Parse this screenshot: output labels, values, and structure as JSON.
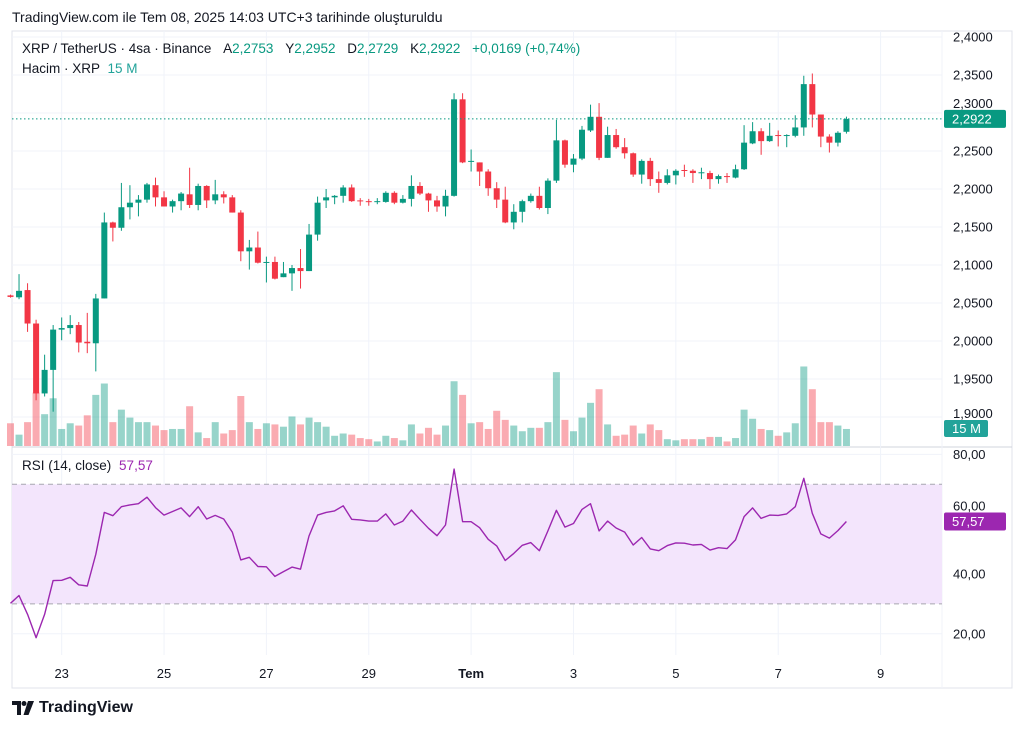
{
  "caption": "TradingView.com ile Tem 08, 2025 14:03 UTC+3 tarihinde oluşturuldu",
  "legend": {
    "symbol": "XRP / TetherUS · 4sa · Binance",
    "open_label": "A",
    "open": "2,2753",
    "high_label": "Y",
    "high": "2,2952",
    "low_label": "D",
    "low": "2,2729",
    "close_label": "K",
    "close": "2,2922",
    "change": "+0,0169 (+0,74%)",
    "volume_label": "Hacim · XRP",
    "volume": "15 M",
    "rsi_label": "RSI (14, close)",
    "rsi": "57,57"
  },
  "footer": {
    "brand": "TradingView"
  },
  "colors": {
    "up": "#089981",
    "down": "#f23645",
    "rsi": "#9c27b0",
    "rsi_band": "#f3e5fc",
    "volume_label": "#22a39a"
  },
  "chart_data": {
    "type": "candlestick",
    "title": "XRP / TetherUS · 4sa · Binance",
    "ylim": [
      1.87,
      2.4
    ],
    "y_ticks": [
      {
        "value": 2.4,
        "label": "2,4000"
      },
      {
        "value": 2.35,
        "label": "2,3500"
      },
      {
        "value": 2.3,
        "label": "2,3000"
      },
      {
        "value": 2.25,
        "label": "2,2500"
      },
      {
        "value": 2.2,
        "label": "2,2000"
      },
      {
        "value": 2.15,
        "label": "2,1500"
      },
      {
        "value": 2.1,
        "label": "2,1000"
      },
      {
        "value": 2.05,
        "label": "2,0500"
      },
      {
        "value": 2.0,
        "label": "2,0000"
      },
      {
        "value": 1.95,
        "label": "1,9500"
      },
      {
        "value": 1.9,
        "label": "1,9000"
      }
    ],
    "x_ticks": [
      {
        "candle": 6,
        "label": "23"
      },
      {
        "candle": 18,
        "label": "25"
      },
      {
        "candle": 30,
        "label": "27"
      },
      {
        "candle": 42,
        "label": "29"
      },
      {
        "candle": 54,
        "label": "Tem",
        "bold": true
      },
      {
        "candle": 66,
        "label": "3"
      },
      {
        "candle": 78,
        "label": "5"
      },
      {
        "candle": 90,
        "label": "7"
      },
      {
        "candle": 102,
        "label": "9"
      }
    ],
    "last_price": {
      "value": 2.2922,
      "label": "2,2922"
    },
    "grid": true,
    "ohlc": [
      [
        2.06,
        2.061,
        2.057,
        2.058
      ],
      [
        2.0575,
        2.088,
        2.055,
        2.066
      ],
      [
        2.067,
        2.076,
        2.012,
        2.023
      ],
      [
        2.023,
        2.028,
        1.922,
        1.931
      ],
      [
        1.931,
        1.982,
        1.927,
        1.962
      ],
      [
        1.962,
        2.021,
        1.907,
        2.015
      ],
      [
        2.015,
        2.031,
        2.001,
        2.017
      ],
      [
        2.017,
        2.034,
        2.009,
        2.021
      ],
      [
        2.021,
        2.025,
        1.985,
        1.998
      ],
      [
        1.999,
        2.037,
        1.984,
        1.997
      ],
      [
        1.997,
        2.062,
        1.96,
        2.056
      ],
      [
        2.056,
        2.169,
        2.056,
        2.156
      ],
      [
        2.156,
        2.157,
        2.131,
        2.149
      ],
      [
        2.149,
        2.208,
        2.145,
        2.176
      ],
      [
        2.176,
        2.205,
        2.16,
        2.182
      ],
      [
        2.182,
        2.192,
        2.164,
        2.186
      ],
      [
        2.186,
        2.208,
        2.182,
        2.206
      ],
      [
        2.205,
        2.215,
        2.177,
        2.189
      ],
      [
        2.189,
        2.197,
        2.177,
        2.177
      ],
      [
        2.177,
        2.186,
        2.169,
        2.184
      ],
      [
        2.184,
        2.196,
        2.172,
        2.194
      ],
      [
        2.193,
        2.228,
        2.175,
        2.179
      ],
      [
        2.179,
        2.207,
        2.172,
        2.204
      ],
      [
        2.204,
        2.205,
        2.175,
        2.185
      ],
      [
        2.185,
        2.212,
        2.18,
        2.193
      ],
      [
        2.193,
        2.197,
        2.181,
        2.189
      ],
      [
        2.189,
        2.192,
        2.169,
        2.169
      ],
      [
        2.169,
        2.172,
        2.105,
        2.118
      ],
      [
        2.118,
        2.133,
        2.094,
        2.123
      ],
      [
        2.123,
        2.144,
        2.102,
        2.103
      ],
      [
        2.103,
        2.111,
        2.077,
        2.104
      ],
      [
        2.104,
        2.111,
        2.081,
        2.082
      ],
      [
        2.084,
        2.104,
        2.084,
        2.089
      ],
      [
        2.089,
        2.1,
        2.066,
        2.096
      ],
      [
        2.096,
        2.121,
        2.069,
        2.092
      ],
      [
        2.092,
        2.154,
        2.092,
        2.14
      ],
      [
        2.14,
        2.19,
        2.132,
        2.182
      ],
      [
        2.185,
        2.2,
        2.175,
        2.189
      ],
      [
        2.189,
        2.192,
        2.18,
        2.191
      ],
      [
        2.191,
        2.205,
        2.182,
        2.202
      ],
      [
        2.202,
        2.206,
        2.183,
        2.184
      ],
      [
        2.185,
        2.188,
        2.178,
        2.184
      ],
      [
        2.184,
        2.187,
        2.178,
        2.183
      ],
      [
        2.183,
        2.188,
        2.18,
        2.184
      ],
      [
        2.183,
        2.197,
        2.182,
        2.195
      ],
      [
        2.195,
        2.197,
        2.18,
        2.182
      ],
      [
        2.182,
        2.192,
        2.181,
        2.187
      ],
      [
        2.187,
        2.218,
        2.177,
        2.204
      ],
      [
        2.204,
        2.209,
        2.192,
        2.194
      ],
      [
        2.194,
        2.195,
        2.17,
        2.185
      ],
      [
        2.185,
        2.191,
        2.17,
        2.177
      ],
      [
        2.177,
        2.199,
        2.164,
        2.191
      ],
      [
        2.191,
        2.326,
        2.19,
        2.318
      ],
      [
        2.318,
        2.326,
        2.234,
        2.235
      ],
      [
        2.236,
        2.252,
        2.223,
        2.237
      ],
      [
        2.235,
        2.235,
        2.204,
        2.223
      ],
      [
        2.223,
        2.226,
        2.191,
        2.201
      ],
      [
        2.201,
        2.209,
        2.175,
        2.186
      ],
      [
        2.186,
        2.203,
        2.155,
        2.156
      ],
      [
        2.156,
        2.18,
        2.147,
        2.17
      ],
      [
        2.17,
        2.186,
        2.156,
        2.184
      ],
      [
        2.184,
        2.194,
        2.182,
        2.191
      ],
      [
        2.191,
        2.203,
        2.173,
        2.175
      ],
      [
        2.175,
        2.214,
        2.167,
        2.211
      ],
      [
        2.211,
        2.291,
        2.208,
        2.264
      ],
      [
        2.264,
        2.265,
        2.228,
        2.232
      ],
      [
        2.232,
        2.246,
        2.222,
        2.24
      ],
      [
        2.24,
        2.283,
        2.238,
        2.278
      ],
      [
        2.277,
        2.311,
        2.275,
        2.295
      ],
      [
        2.295,
        2.313,
        2.238,
        2.241
      ],
      [
        2.241,
        2.282,
        2.241,
        2.271
      ],
      [
        2.271,
        2.279,
        2.253,
        2.255
      ],
      [
        2.255,
        2.267,
        2.24,
        2.247
      ],
      [
        2.247,
        2.248,
        2.216,
        2.219
      ],
      [
        2.219,
        2.239,
        2.207,
        2.237
      ],
      [
        2.237,
        2.241,
        2.204,
        2.213
      ],
      [
        2.213,
        2.223,
        2.195,
        2.208
      ],
      [
        2.208,
        2.226,
        2.206,
        2.218
      ],
      [
        2.218,
        2.226,
        2.206,
        2.224
      ],
      [
        2.225,
        2.232,
        2.216,
        2.224
      ],
      [
        2.224,
        2.226,
        2.208,
        2.221
      ],
      [
        2.221,
        2.228,
        2.213,
        2.222
      ],
      [
        2.221,
        2.224,
        2.2,
        2.213
      ],
      [
        2.213,
        2.219,
        2.207,
        2.217
      ],
      [
        2.217,
        2.221,
        2.208,
        2.216
      ],
      [
        2.215,
        2.232,
        2.214,
        2.226
      ],
      [
        2.226,
        2.284,
        2.225,
        2.261
      ],
      [
        2.26,
        2.288,
        2.259,
        2.276
      ],
      [
        2.276,
        2.28,
        2.245,
        2.263
      ],
      [
        2.263,
        2.287,
        2.262,
        2.27
      ],
      [
        2.271,
        2.277,
        2.256,
        2.27
      ],
      [
        2.27,
        2.272,
        2.255,
        2.271
      ],
      [
        2.27,
        2.297,
        2.268,
        2.281
      ],
      [
        2.281,
        2.349,
        2.27,
        2.338
      ],
      [
        2.338,
        2.352,
        2.281,
        2.298
      ],
      [
        2.298,
        2.298,
        2.255,
        2.269
      ],
      [
        2.269,
        2.272,
        2.248,
        2.261
      ],
      [
        2.261,
        2.276,
        2.256,
        2.274
      ],
      [
        2.2753,
        2.2952,
        2.2729,
        2.2922
      ]
    ],
    "volume_millions": [
      20,
      10,
      21,
      47,
      28,
      42,
      15,
      20,
      18,
      27,
      45,
      55,
      21,
      32,
      25,
      21,
      21,
      18,
      14,
      15,
      15,
      35,
      12,
      7,
      21,
      11,
      14,
      44,
      21,
      15,
      20,
      19,
      17,
      26,
      19,
      25,
      21,
      17,
      9,
      11,
      10,
      7,
      6,
      4,
      9,
      7,
      5,
      19,
      11,
      16,
      10,
      18,
      57,
      45,
      20,
      21,
      15,
      31,
      23,
      18,
      13,
      16,
      16,
      21,
      65,
      23,
      13,
      25,
      38,
      50,
      19,
      9,
      10,
      18,
      11,
      19,
      14,
      6,
      5,
      6,
      6,
      6,
      8,
      8,
      4,
      7,
      32,
      24,
      15,
      14,
      9,
      12,
      20,
      70,
      50,
      21,
      21,
      18,
      15
    ],
    "volume_last_label": "15 M",
    "rsi": {
      "period": 14,
      "ylim": [
        10,
        85
      ],
      "band": [
        30,
        70
      ],
      "y_ticks": [
        {
          "value": 80,
          "label": "80,00"
        },
        {
          "value": 60,
          "label": "60,00"
        },
        {
          "value": 40,
          "label": "40,00"
        },
        {
          "value": 20,
          "label": "20,00"
        }
      ],
      "last_label": "57,57",
      "values": [
        30.2,
        32.8,
        26.5,
        18.7,
        26.5,
        37.8,
        37.9,
        38.9,
        36.4,
        36.0,
        46.6,
        60.6,
        59.5,
        62.5,
        63.1,
        63.5,
        65.7,
        62.2,
        59.7,
        60.9,
        62.1,
        59.2,
        62.5,
        58.4,
        59.6,
        58.4,
        54.0,
        44.7,
        45.6,
        42.5,
        42.4,
        39.2,
        40.8,
        42.3,
        41.6,
        52.7,
        59.7,
        60.6,
        61.1,
        62.8,
        58.3,
        58.1,
        57.7,
        57.7,
        60.1,
        56.4,
        57.7,
        61.4,
        58.3,
        55.3,
        52.8,
        56.4,
        75.1,
        57.5,
        57.5,
        55.5,
        51.6,
        49.4,
        44.5,
        46.9,
        49.6,
        50.5,
        47.8,
        54.4,
        61.3,
        55.7,
        56.9,
        61.6,
        63.5,
        54.4,
        57.7,
        55.4,
        54.0,
        49.7,
        52.2,
        48.4,
        47.8,
        49.5,
        50.4,
        50.3,
        49.7,
        49.9,
        48.0,
        48.8,
        48.5,
        51.4,
        59.2,
        62.1,
        58.6,
        59.7,
        59.6,
        60.1,
        62.5,
        72.0,
        60.3,
        53.4,
        52.0,
        54.5,
        57.57
      ]
    }
  }
}
